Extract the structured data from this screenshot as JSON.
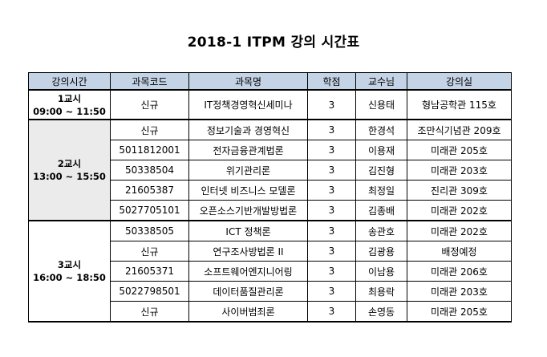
{
  "title": "2018-1 ITPM 강의 시간표",
  "headers": [
    "강의시간",
    "과목코드",
    "과목명",
    "학점",
    "교수님",
    "강의실"
  ],
  "periods": [
    {
      "name": "1교시",
      "time": "09:00 ~ 11:50",
      "courses": [
        {
          "code": "신규",
          "name": "IT정책경영혁신세미나",
          "credit": "3",
          "professor": "신용태",
          "room": "형남공학관 115호"
        }
      ]
    },
    {
      "name": "2교시",
      "time": "13:00 ~ 15:50",
      "courses": [
        {
          "code": "신규",
          "name": "정보기술과 경영혁신",
          "credit": "3",
          "professor": "한경석",
          "room": "조만식기념관 209호"
        },
        {
          "code": "5011812001",
          "name": "전자금융관계법론",
          "credit": "3",
          "professor": "이용재",
          "room": "미래관 205호"
        },
        {
          "code": "50338504",
          "name": "위기관리론",
          "credit": "3",
          "professor": "김진형",
          "room": "미래관 203호"
        },
        {
          "code": "21605387",
          "name": "인터넷 비즈니스 모델론",
          "credit": "3",
          "professor": "최정일",
          "room": "진리관 309호"
        },
        {
          "code": "5027705101",
          "name": "오픈소스기반개발방법론",
          "credit": "3",
          "professor": "김종배",
          "room": "미래관 202호"
        }
      ]
    },
    {
      "name": "3교시",
      "time": "16:00 ~ 18:50",
      "courses": [
        {
          "code": "50338505",
          "name": "ICT 정책론",
          "credit": "3",
          "professor": "송관호",
          "room": "미래관 202호"
        },
        {
          "code": "신규",
          "name": "연구조사방법론 II",
          "credit": "3",
          "professor": "김광용",
          "room": "배정예정"
        },
        {
          "code": "21605371",
          "name": "소프트웨어엔지니어링",
          "credit": "3",
          "professor": "이남용",
          "room": "미래관 206호"
        },
        {
          "code": "5022798501",
          "name": "데이터품질관리론",
          "credit": "3",
          "professor": "최용락",
          "room": "미래관 203호"
        },
        {
          "code": "신규",
          "name": "사이버범죄론",
          "credit": "3",
          "professor": "손영동",
          "room": "미래관 205호"
        }
      ]
    }
  ]
}
